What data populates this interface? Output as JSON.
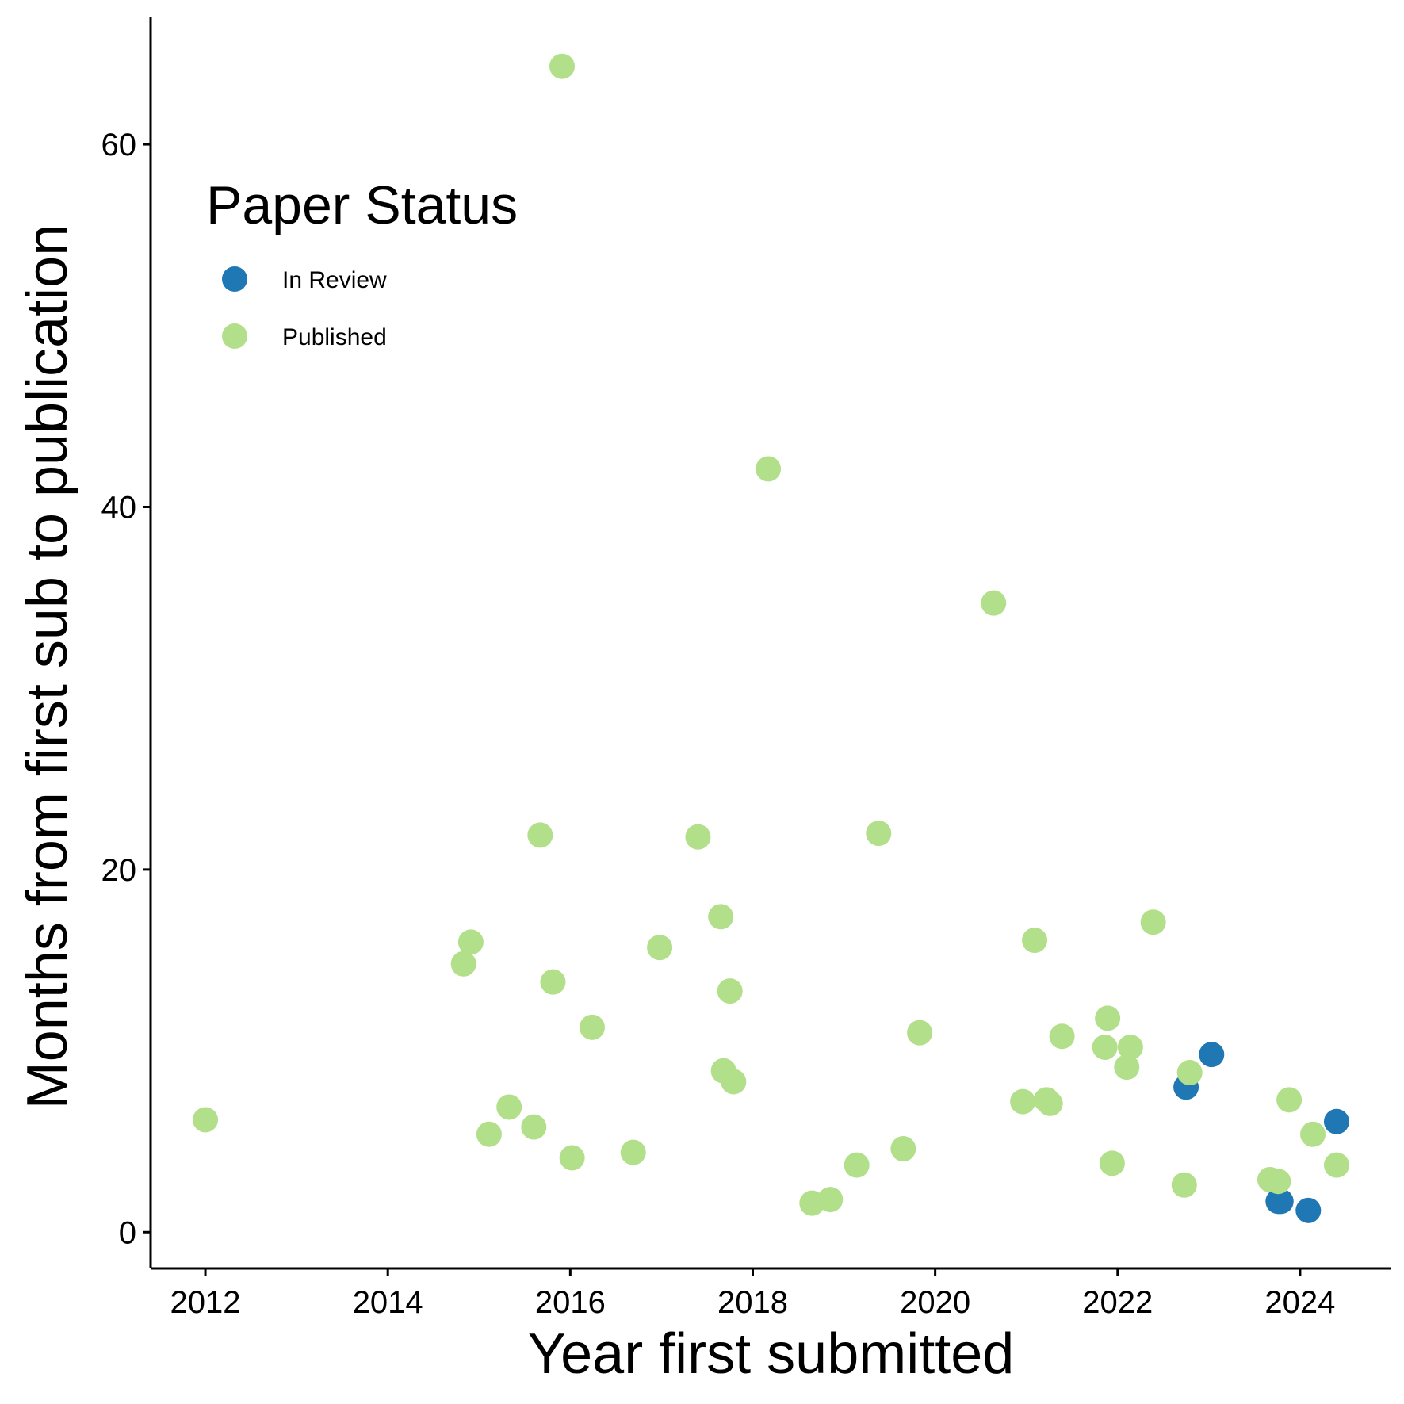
{
  "chart_data": {
    "type": "scatter",
    "xlabel": "Year first submitted",
    "ylabel": "Months from first sub to publication",
    "xlim": [
      2011.4,
      2025.0
    ],
    "ylim": [
      -2,
      67
    ],
    "x_ticks": [
      2012,
      2014,
      2016,
      2018,
      2020,
      2022,
      2024
    ],
    "y_ticks": [
      0,
      20,
      40,
      60
    ],
    "grid": false,
    "legend": {
      "title": "Paper Status",
      "placement": "top-left",
      "entries": [
        "In Review",
        "Published"
      ]
    },
    "series": [
      {
        "name": "In Review",
        "color": "#1f78b4",
        "points": [
          [
            2022.75,
            8.0
          ],
          [
            2023.03,
            9.8
          ],
          [
            2023.76,
            1.7
          ],
          [
            2023.79,
            1.7
          ],
          [
            2024.09,
            1.2
          ],
          [
            2024.4,
            6.1
          ]
        ]
      },
      {
        "name": "Published",
        "color": "#b2df8a",
        "points": [
          [
            2012.0,
            6.2
          ],
          [
            2014.83,
            14.8
          ],
          [
            2014.91,
            16.0
          ],
          [
            2015.11,
            5.4
          ],
          [
            2015.33,
            6.9
          ],
          [
            2015.6,
            5.8
          ],
          [
            2015.67,
            21.9
          ],
          [
            2015.81,
            13.8
          ],
          [
            2015.91,
            64.3
          ],
          [
            2016.02,
            4.1
          ],
          [
            2016.24,
            11.3
          ],
          [
            2016.69,
            4.4
          ],
          [
            2016.98,
            15.7
          ],
          [
            2017.4,
            21.8
          ],
          [
            2017.65,
            17.4
          ],
          [
            2017.68,
            8.9
          ],
          [
            2017.75,
            13.3
          ],
          [
            2017.79,
            8.3
          ],
          [
            2018.17,
            42.1
          ],
          [
            2018.65,
            1.6
          ],
          [
            2018.85,
            1.8
          ],
          [
            2019.14,
            3.7
          ],
          [
            2019.38,
            22.0
          ],
          [
            2019.65,
            4.6
          ],
          [
            2019.83,
            11.0
          ],
          [
            2020.64,
            34.7
          ],
          [
            2020.96,
            7.2
          ],
          [
            2021.09,
            16.1
          ],
          [
            2021.22,
            7.3
          ],
          [
            2021.26,
            7.1
          ],
          [
            2021.39,
            10.8
          ],
          [
            2021.86,
            10.2
          ],
          [
            2021.89,
            11.8
          ],
          [
            2021.94,
            3.8
          ],
          [
            2022.1,
            9.1
          ],
          [
            2022.14,
            10.2
          ],
          [
            2022.39,
            17.1
          ],
          [
            2022.73,
            2.6
          ],
          [
            2022.79,
            8.8
          ],
          [
            2023.67,
            2.9
          ],
          [
            2023.76,
            2.8
          ],
          [
            2023.88,
            7.3
          ],
          [
            2024.14,
            5.4
          ],
          [
            2024.4,
            3.7
          ]
        ]
      }
    ]
  }
}
